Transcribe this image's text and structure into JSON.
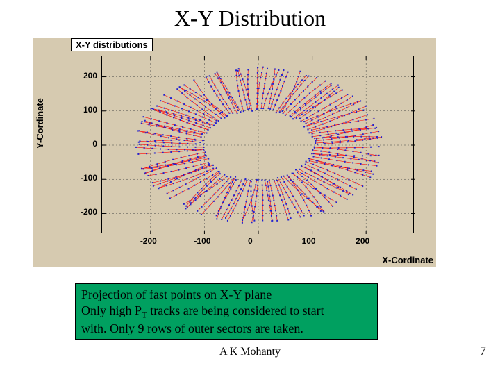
{
  "title": "X-Y Distribution",
  "legend": "X-Y distributions",
  "ylabel": "Y-Cordinate",
  "xlabel": "X-Cordinate",
  "chart": {
    "type": "scatter",
    "xlim": [
      -290,
      290
    ],
    "ylim": [
      -260,
      260
    ],
    "xticks": [
      -200,
      -100,
      0,
      100,
      200
    ],
    "yticks": [
      -200,
      -100,
      0,
      100,
      200
    ],
    "background_color": "#d6cab0",
    "grid_color": "#404040",
    "line_color": "#ff0000",
    "marker_color": "#2020d0",
    "marker": "square",
    "marker_size": 2,
    "line_width": 0.6,
    "inner_radius": 100,
    "outer_radius": 230,
    "n_tracks": 120,
    "n_rows": 9,
    "track_color_fontsize": 12
  },
  "caption": {
    "line1": "Projection of fast points on X-Y plane",
    "line2a": "Only high P",
    "line2sub": "T",
    "line2b": " tracks are being considered to start",
    "line3": "with. Only 9 rows of outer sectors are taken.",
    "bg": "#00a060"
  },
  "author": "A K Mohanty",
  "page": "7"
}
